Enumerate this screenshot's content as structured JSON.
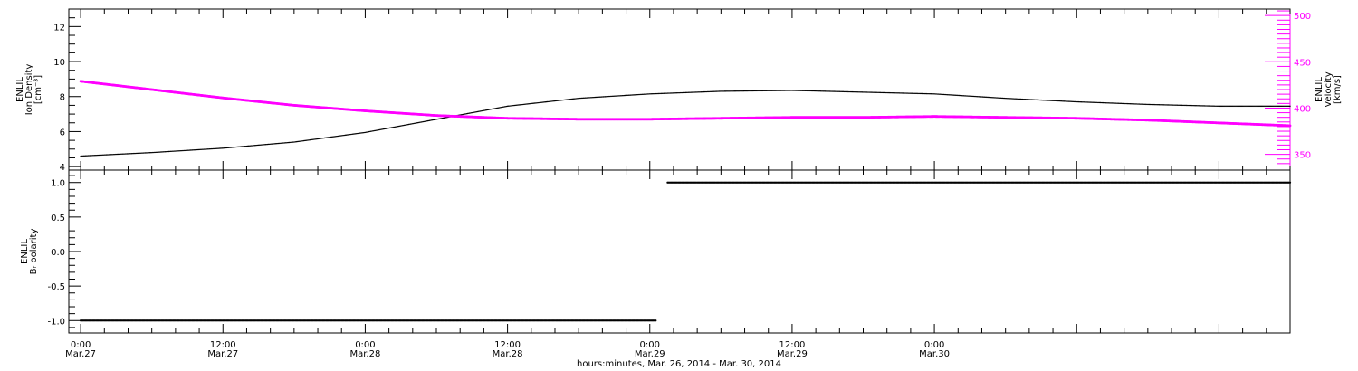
{
  "chart_data": [
    {
      "type": "line",
      "panel": "top",
      "ylabel_left": [
        "ENLIL",
        "Ion Density",
        "[cm⁻³]"
      ],
      "ylabel_right": [
        "ENLIL",
        "Velocity",
        "[km/s]"
      ],
      "ylim_left": [
        3.8,
        13.0
      ],
      "ylim_right": [
        333,
        507
      ],
      "yticks_left": [
        4,
        6,
        8,
        10,
        12
      ],
      "yticks_right": [
        350,
        400,
        450,
        500
      ],
      "series": [
        {
          "axis": "left",
          "color": "#000000",
          "x": [
            0,
            6,
            12,
            18,
            24,
            30,
            36,
            42,
            48,
            54,
            60,
            66,
            72,
            78,
            84,
            90,
            96,
            102
          ],
          "values": [
            4.6,
            4.8,
            5.05,
            5.4,
            5.95,
            6.7,
            7.45,
            7.9,
            8.15,
            8.3,
            8.35,
            8.25,
            8.15,
            7.9,
            7.7,
            7.55,
            7.45,
            7.45
          ]
        },
        {
          "axis": "right",
          "color": "#ff00ff",
          "x": [
            0,
            6,
            12,
            18,
            24,
            30,
            36,
            42,
            48,
            54,
            60,
            66,
            72,
            78,
            84,
            90,
            96,
            102
          ],
          "values": [
            429,
            420,
            411,
            403,
            397,
            392,
            389,
            388,
            388,
            389,
            390,
            390,
            391,
            390,
            389,
            387,
            384,
            381
          ]
        }
      ]
    },
    {
      "type": "scatter",
      "panel": "bottom",
      "ylabel": [
        "ENLIL",
        "Bᵣ polarity"
      ],
      "ylim": [
        -1.18,
        1.18
      ],
      "yticks": [
        -1.0,
        -0.5,
        0.0,
        0.5,
        1.0
      ],
      "ytick_labels": [
        "-1.0",
        "-0.5",
        "0.0",
        "0.5",
        "1.0"
      ],
      "series": [
        {
          "color": "#000000",
          "segments": [
            {
              "x": [
                0,
                48.5
              ],
              "value": -1
            },
            {
              "x": [
                49.5,
                102
              ],
              "value": 1
            }
          ]
        }
      ]
    }
  ],
  "x_axis": {
    "unit": "hours since 0:00 Mar.27",
    "xlim": [
      -1,
      102
    ],
    "ticks": [
      {
        "x": 0,
        "time": "0:00",
        "date": "Mar.27"
      },
      {
        "x": 12,
        "time": "12:00",
        "date": "Mar.27"
      },
      {
        "x": 24,
        "time": "0:00",
        "date": "Mar.28"
      },
      {
        "x": 36,
        "time": "12:00",
        "date": "Mar.28"
      },
      {
        "x": 48,
        "time": "0:00",
        "date": "Mar.29"
      },
      {
        "x": 60,
        "time": "12:00",
        "date": "Mar.29"
      },
      {
        "x": 72,
        "time": "0:00",
        "date": "Mar.30"
      }
    ],
    "minor_step": 2,
    "label": "hours:minutes, Mar. 26, 2014 - Mar. 30, 2014"
  },
  "colors": {
    "density": "#000000",
    "velocity": "#ff00ff",
    "axes": "#000000"
  }
}
